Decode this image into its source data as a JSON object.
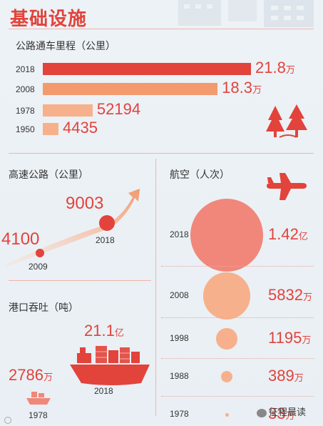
{
  "title": "基础设施",
  "roads": {
    "subtitle": "公路通车里程（公里）",
    "rows": [
      {
        "year": "2018",
        "value": "21.8",
        "unit": "万"
      },
      {
        "year": "2008",
        "value": "18.3",
        "unit": "万"
      },
      {
        "year": "1978",
        "value": "52194",
        "unit": ""
      },
      {
        "year": "1950",
        "value": "4435",
        "unit": ""
      }
    ]
  },
  "highway": {
    "subtitle": "高速公路（公里）",
    "points": [
      {
        "year": "2009",
        "value": "4100"
      },
      {
        "year": "2018",
        "value": "9003"
      }
    ]
  },
  "port": {
    "subtitle": "港口吞吐（吨）",
    "items": [
      {
        "year": "2018",
        "value": "21.1",
        "unit": "亿"
      },
      {
        "year": "1978",
        "value": "2786",
        "unit": "万"
      }
    ]
  },
  "aviation": {
    "subtitle": "航空（人次）",
    "rows": [
      {
        "year": "2018",
        "value": "1.42",
        "unit": "亿"
      },
      {
        "year": "2008",
        "value": "5832",
        "unit": "万"
      },
      {
        "year": "1998",
        "value": "1195",
        "unit": "万"
      },
      {
        "year": "1988",
        "value": "389",
        "unit": "万"
      },
      {
        "year": "1978",
        "value": "33",
        "unit": "万"
      }
    ]
  },
  "watermark": "征程晨读",
  "colors": {
    "red": "#e2433b",
    "orange": "#f39a6f",
    "light": "#f7b08c",
    "pink": "#f1877a"
  },
  "chart_data": [
    {
      "type": "bar",
      "title": "公路通车里程（公里）",
      "categories": [
        "2018",
        "2008",
        "1978",
        "1950"
      ],
      "values": [
        218000,
        183000,
        52194,
        4435
      ]
    },
    {
      "type": "line",
      "title": "高速公路（公里）",
      "x": [
        "2009",
        "2018"
      ],
      "values": [
        4100,
        9003
      ]
    },
    {
      "type": "scatter",
      "title": "航空（人次）",
      "categories": [
        "2018",
        "2008",
        "1998",
        "1988",
        "1978"
      ],
      "values": [
        142000000,
        58320000,
        11950000,
        3890000,
        330000
      ]
    },
    {
      "type": "bar",
      "title": "港口吞吐（吨）",
      "categories": [
        "2018",
        "1978"
      ],
      "values": [
        2110000000,
        27860000
      ]
    }
  ]
}
